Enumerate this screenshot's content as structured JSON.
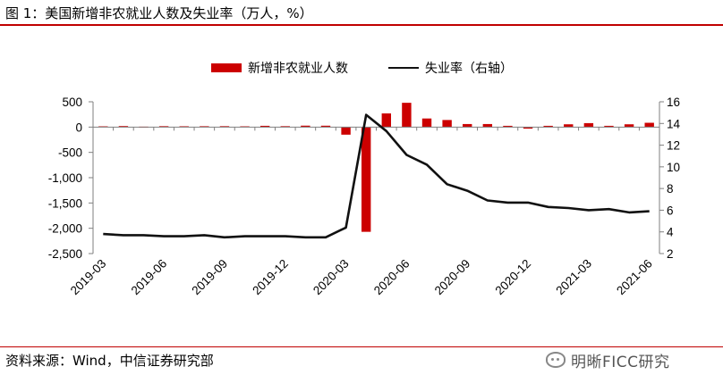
{
  "figure": {
    "title": "图 1：美国新增非农就业人数及失业率（万人，%）",
    "source": "资料来源：Wind，中信证券研究部",
    "watermark": "明晰FICC研究",
    "watermark_icon": "wechat-icon"
  },
  "colors": {
    "bars": "#cc0000",
    "line": "#111111",
    "rule": "#c00000",
    "axis": "#7f7f7f"
  },
  "chart_data": {
    "type": "bar",
    "x": [
      "2019-03",
      "2019-04",
      "2019-05",
      "2019-06",
      "2019-07",
      "2019-08",
      "2019-09",
      "2019-10",
      "2019-11",
      "2019-12",
      "2020-01",
      "2020-02",
      "2020-03",
      "2020-04",
      "2020-05",
      "2020-06",
      "2020-07",
      "2020-08",
      "2020-09",
      "2020-10",
      "2020-11",
      "2020-12",
      "2021-01",
      "2021-02",
      "2021-03",
      "2021-04",
      "2021-05",
      "2021-06"
    ],
    "xtick_labels": [
      "2019-03",
      "2019-06",
      "2019-09",
      "2019-12",
      "2020-03",
      "2020-06",
      "2020-09",
      "2020-12",
      "2021-03",
      "2021-06"
    ],
    "series": [
      {
        "name": "新增非农就业人数",
        "type": "bar",
        "axis": "left",
        "values": [
          15,
          20,
          8,
          18,
          16,
          17,
          18,
          15,
          25,
          18,
          28,
          27,
          -150,
          -2070,
          270,
          480,
          170,
          140,
          60,
          60,
          25,
          -30,
          25,
          55,
          78,
          25,
          55,
          85
        ]
      },
      {
        "name": "失业率（右轴）",
        "type": "line",
        "axis": "right",
        "values": [
          3.8,
          3.7,
          3.7,
          3.6,
          3.6,
          3.7,
          3.5,
          3.6,
          3.6,
          3.6,
          3.5,
          3.5,
          4.4,
          14.8,
          13.3,
          11.1,
          10.2,
          8.4,
          7.8,
          6.9,
          6.7,
          6.7,
          6.3,
          6.2,
          6.0,
          6.1,
          5.8,
          5.9
        ]
      }
    ],
    "y_left": {
      "ticks": [
        "500",
        "0",
        "-500",
        "-1,000",
        "-1,500",
        "-2,000",
        "-2,500"
      ],
      "min": -2500,
      "max": 500
    },
    "y_right": {
      "ticks": [
        "16",
        "14",
        "12",
        "10",
        "8",
        "6",
        "4",
        "2"
      ],
      "min": 2,
      "max": 16
    },
    "legend": {
      "placement": "top-center"
    },
    "grid": false
  }
}
